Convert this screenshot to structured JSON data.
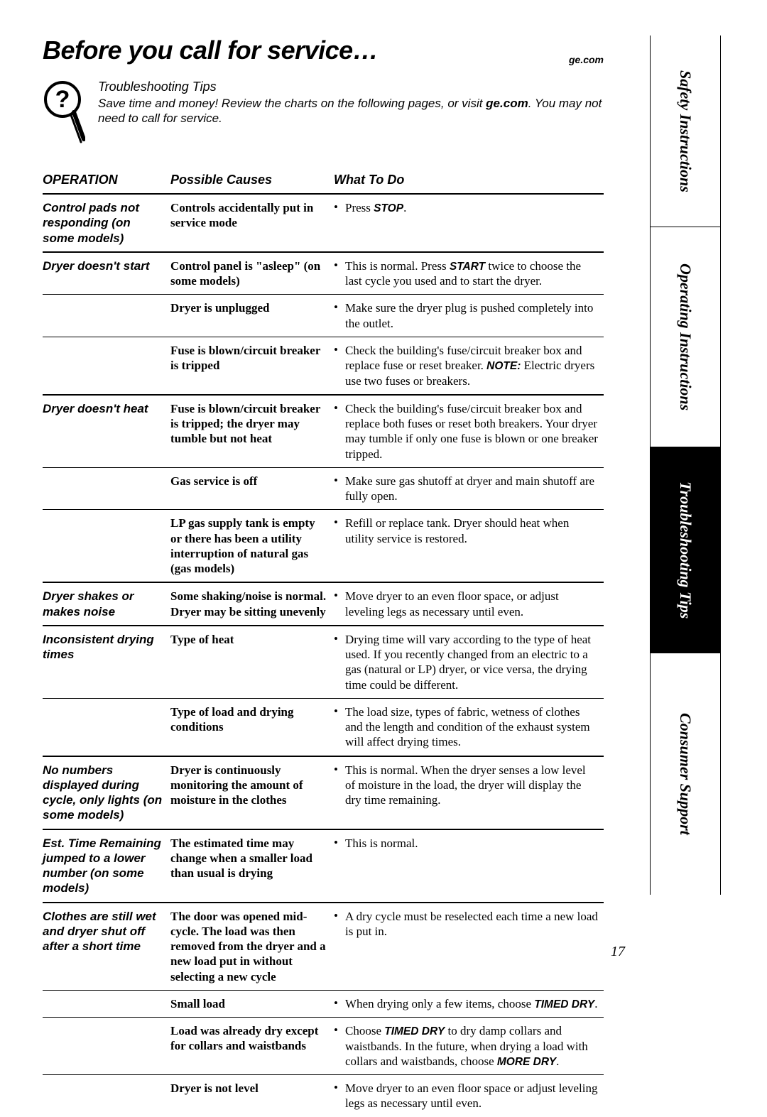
{
  "header": {
    "title": "Before you call for service…",
    "brand_url": "ge.com"
  },
  "intro": {
    "subhead": "Troubleshooting Tips",
    "body_html": "Save time and money! Review the charts on the following pages, or visit <b>ge.com</b>. You may not need to call for service."
  },
  "side_tabs": [
    {
      "label": "Safety Instructions",
      "active": false
    },
    {
      "label": "Operating Instructions",
      "active": false
    },
    {
      "label": "Troubleshooting Tips",
      "active": true
    },
    {
      "label": "Consumer Support",
      "active": false
    }
  ],
  "columns": {
    "operation": "OPERATION",
    "causes": "Possible Causes",
    "fix": "What To Do"
  },
  "rows": [
    {
      "operation": "Control pads not responding (on some models)",
      "causes": [
        {
          "cause": "Controls accidentally put in service mode",
          "fix_html": "Press <strong>STOP</strong>.",
          "sep": "thick"
        }
      ]
    },
    {
      "operation": "Dryer doesn't start",
      "causes": [
        {
          "cause": "Control panel is \"asleep\" (on some models)",
          "fix_html": "This is normal. Press <strong>START</strong> twice to choose the last cycle you used and to start the dryer.",
          "sep": "thin"
        },
        {
          "cause": "Dryer is unplugged",
          "fix_html": "Make sure the dryer plug is pushed completely into the outlet.",
          "sep": "thin"
        },
        {
          "cause": "Fuse is blown/circuit breaker is tripped",
          "fix_html": "Check the building's fuse/circuit breaker box and replace fuse or reset breaker. <strong>NOTE:</strong> Electric dryers use two fuses or breakers.",
          "sep": "thick"
        }
      ]
    },
    {
      "operation": "Dryer doesn't heat",
      "causes": [
        {
          "cause": "Fuse is blown/circuit breaker is tripped; the dryer may tumble but not heat",
          "fix_html": "Check the building's fuse/circuit breaker box and replace both fuses or reset both breakers. Your dryer may tumble if only one fuse is blown or one breaker tripped.",
          "sep": "thin"
        },
        {
          "cause": "Gas service is off",
          "fix_html": "Make sure gas shutoff at dryer and main shutoff are fully open.",
          "sep": "thin"
        },
        {
          "cause": "LP gas supply tank is empty or there has been a utility interruption of natural gas (gas models)",
          "fix_html": "Refill or replace tank. Dryer should heat when utility service is restored.",
          "sep": "thick"
        }
      ]
    },
    {
      "operation": "Dryer shakes or makes noise",
      "causes": [
        {
          "cause": "Some shaking/noise is normal. Dryer may be sitting unevenly",
          "fix_html": "Move dryer to an even floor space, or adjust leveling legs as necessary until even.",
          "sep": "thick"
        }
      ]
    },
    {
      "operation": "Inconsistent drying times",
      "causes": [
        {
          "cause": "Type of heat",
          "fix_html": "Drying time will vary according to the type of heat used. If you recently changed from an electric to a gas (natural or LP) dryer, or vice versa, the drying time could be different.",
          "sep": "thin"
        },
        {
          "cause": "Type of load and drying conditions",
          "fix_html": "The load size, types of fabric, wetness of clothes and the length and condition of the exhaust system will affect drying times.",
          "sep": "thick"
        }
      ]
    },
    {
      "operation": "No numbers displayed during cycle, only lights (on some models)",
      "causes": [
        {
          "cause": "Dryer is continuously monitoring the amount of moisture in the clothes",
          "fix_html": "This is normal. When the dryer senses a low level of moisture in the load, the dryer will display the dry time remaining.",
          "sep": "thick"
        }
      ]
    },
    {
      "operation": "Est. Time Remaining jumped to a lower number (on some models)",
      "causes": [
        {
          "cause": "The estimated time may change when a smaller load than usual is drying",
          "fix_html": "This is normal.",
          "sep": "thick"
        }
      ]
    },
    {
      "operation": "Clothes are still wet and dryer shut off after a short time",
      "causes": [
        {
          "cause": "The door was opened mid-cycle. The load was then removed from the dryer and a new load put in without selecting a new cycle",
          "fix_html": "A dry cycle must be reselected each time a new load is put in.",
          "sep": "thin"
        },
        {
          "cause": "Small load",
          "fix_html": "When drying only a few items, choose <strong>TIMED DRY</strong>.",
          "sep": "thin"
        },
        {
          "cause": "Load was already dry except for collars and waistbands",
          "fix_html": "Choose <strong>TIMED DRY</strong> to dry damp collars and waistbands. In the future, when drying a load with collars and waistbands, choose <strong>MORE DRY</strong>.",
          "sep": "thin"
        },
        {
          "cause": "Dryer is not level",
          "fix_html": "Move dryer to an even floor space or adjust leveling legs as necessary until even.",
          "sep": "none"
        }
      ]
    }
  ],
  "page_number": "17"
}
